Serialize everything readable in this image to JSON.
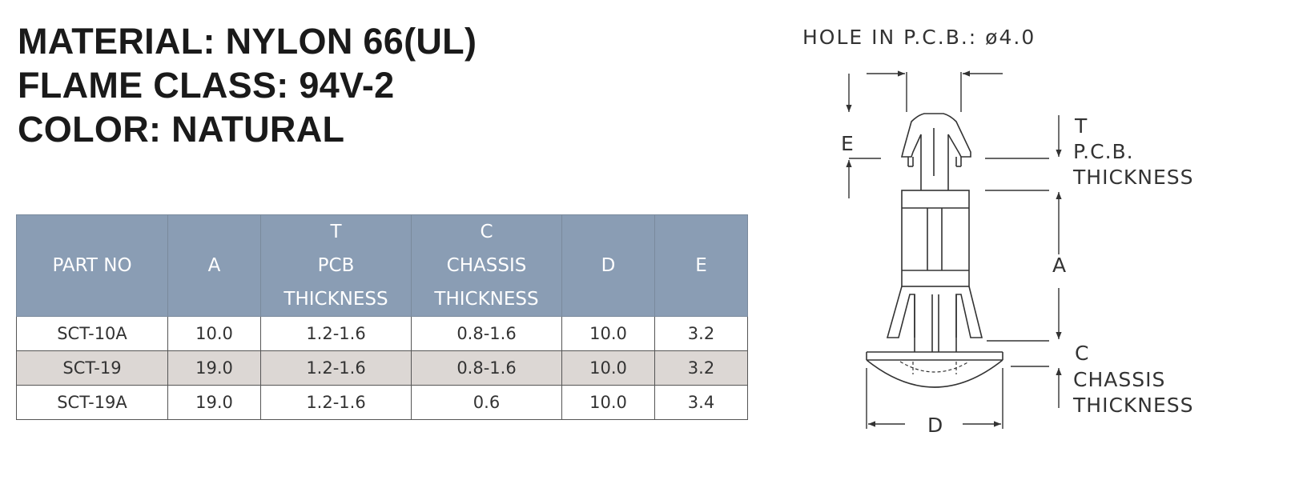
{
  "spec": {
    "material": "MATERIAL: NYLON 66(UL)",
    "flame_class": "FLAME CLASS: 94V-2",
    "color": "COLOR: NATURAL"
  },
  "table": {
    "headers": [
      [
        "PART NO"
      ],
      [
        "A"
      ],
      [
        "T",
        "PCB",
        "THICKNESS"
      ],
      [
        "C",
        "CHASSIS",
        "THICKNESS"
      ],
      [
        "D"
      ],
      [
        "E"
      ]
    ],
    "rows": [
      [
        "SCT-10A",
        "10.0",
        "1.2-1.6",
        "0.8-1.6",
        "10.0",
        "3.2"
      ],
      [
        "SCT-19",
        "19.0",
        "1.2-1.6",
        "0.8-1.6",
        "10.0",
        "3.2"
      ],
      [
        "SCT-19A",
        "19.0",
        "1.2-1.6",
        "0.6",
        "10.0",
        "3.4"
      ]
    ]
  },
  "drawing": {
    "hole": "HOLE IN P.C.B.: ø4.0",
    "label_e": "E",
    "label_t": "T",
    "label_pcb_1": "P.C.B.",
    "label_pcb_2": "THICKNESS",
    "label_a": "A",
    "label_c": "C",
    "label_chassis_1": "CHASSIS",
    "label_chassis_2": "THICKNESS",
    "label_d": "D"
  }
}
